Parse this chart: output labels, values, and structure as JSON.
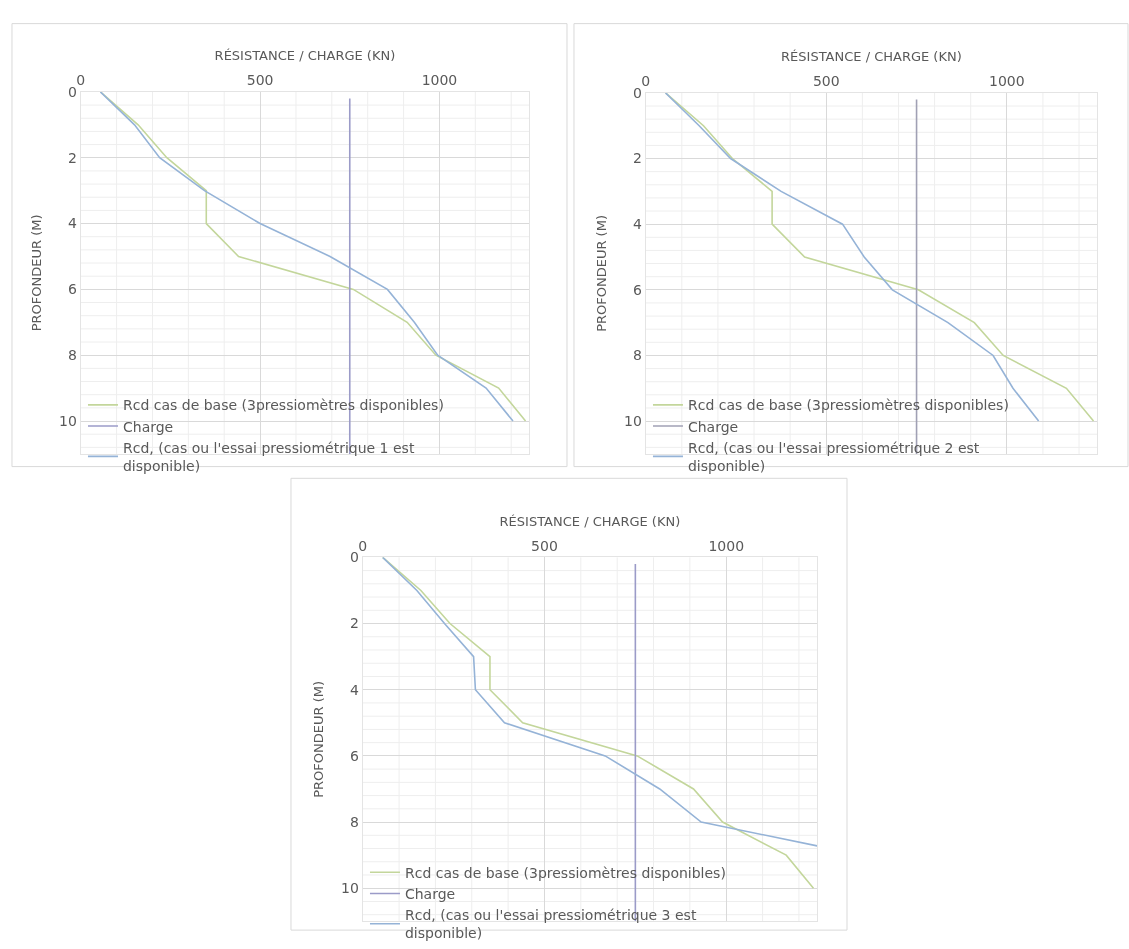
{
  "chart_data": [
    {
      "type": "line",
      "xlabel": "RÉSISTANCE / CHARGE (KN)",
      "ylabel": "PROFONDEUR (M)",
      "xlim": [
        0,
        1250
      ],
      "xticks": [
        0,
        500,
        1000
      ],
      "ylim": [
        11,
        0
      ],
      "yticks": [
        0,
        2,
        4,
        6,
        8,
        10
      ],
      "grid": true,
      "legend": "bottom left",
      "series": [
        {
          "name": "Rcd cas de base (3pressiomètres disponibles)",
          "color": "#c3d69b",
          "x": [
            55,
            160,
            240,
            350,
            350,
            440,
            760,
            910,
            990,
            1165,
            1240
          ],
          "values": [
            0,
            1,
            2,
            3,
            4,
            5,
            6,
            7,
            8,
            9,
            10
          ]
        },
        {
          "name": "Charge",
          "color": "#9b9bc8",
          "x": [
            750,
            750
          ],
          "values": [
            0.2,
            11
          ]
        },
        {
          "name": "Rcd, (cas ou l'essai pressiométrique 1 est disponible)",
          "color": "#95b3d7",
          "x": [
            55,
            150,
            220,
            345,
            500,
            695,
            855,
            930,
            995,
            1130,
            1205
          ],
          "values": [
            0,
            1,
            2,
            3,
            4,
            5,
            6,
            7,
            8,
            9,
            10
          ]
        }
      ]
    },
    {
      "type": "line",
      "xlabel": "RÉSISTANCE / CHARGE (KN)",
      "ylabel": "PROFONDEUR (M)",
      "xlim": [
        0,
        1250
      ],
      "xticks": [
        0,
        500,
        1000
      ],
      "ylim": [
        11,
        0
      ],
      "yticks": [
        0,
        2,
        4,
        6,
        8,
        10
      ],
      "grid": true,
      "legend": "bottom left",
      "series": [
        {
          "name": "Rcd cas de base (3pressiomètres disponibles)",
          "color": "#c3d69b",
          "x": [
            55,
            160,
            240,
            350,
            350,
            440,
            755,
            910,
            990,
            1165,
            1240
          ],
          "values": [
            0,
            1,
            2,
            3,
            4,
            5,
            6,
            7,
            8,
            9,
            10
          ]
        },
        {
          "name": "Charge",
          "color": "#a0a0b4",
          "x": [
            750,
            750
          ],
          "values": [
            0.2,
            11
          ]
        },
        {
          "name": "Rcd, (cas ou l'essai pressiométrique 2 est disponible)",
          "color": "#95b3d7",
          "x": [
            55,
            148,
            235,
            375,
            545,
            605,
            683,
            837,
            962,
            1017,
            1088
          ],
          "values": [
            0,
            1,
            2,
            3,
            4,
            5,
            6,
            7,
            8,
            9,
            10
          ]
        }
      ]
    },
    {
      "type": "line",
      "xlabel": "RÉSISTANCE / CHARGE (KN)",
      "ylabel": "PROFONDEUR (M)",
      "xlim": [
        0,
        1250
      ],
      "xticks": [
        0,
        500,
        1000
      ],
      "ylim": [
        11,
        0
      ],
      "yticks": [
        0,
        2,
        4,
        6,
        8,
        10
      ],
      "grid": true,
      "legend": "bottom left",
      "series": [
        {
          "name": "Rcd cas de base (3pressiomètres disponibles)",
          "color": "#c3d69b",
          "x": [
            55,
            160,
            240,
            350,
            350,
            440,
            755,
            910,
            990,
            1165,
            1240
          ],
          "values": [
            0,
            1,
            2,
            3,
            4,
            5,
            6,
            7,
            8,
            9,
            10
          ]
        },
        {
          "name": "Charge",
          "color": "#9b9bc8",
          "x": [
            750,
            750
          ],
          "values": [
            0.2,
            11
          ]
        },
        {
          "name": "Rcd, (cas ou l'essai pressiométrique 3 est disponible)",
          "color": "#95b3d7",
          "x": [
            55,
            149,
            225,
            305,
            310,
            390,
            667,
            817,
            931,
            1250
          ],
          "values": [
            0,
            1,
            2,
            3,
            4,
            5,
            6,
            7,
            8,
            8.72
          ]
        }
      ]
    }
  ]
}
